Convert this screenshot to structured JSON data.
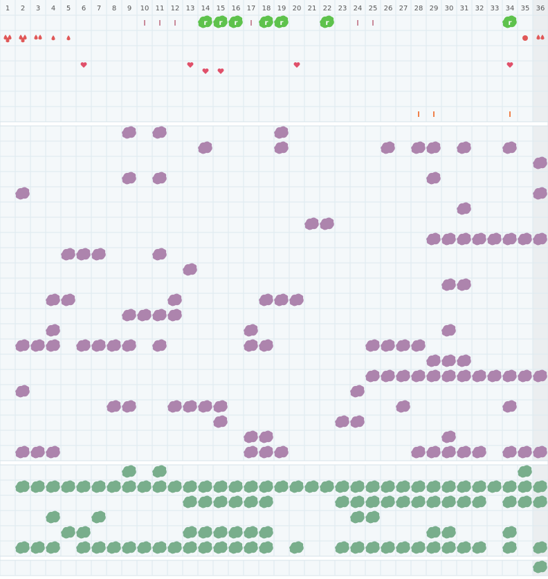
{
  "columns": [
    1,
    2,
    3,
    4,
    5,
    6,
    7,
    8,
    9,
    10,
    11,
    12,
    13,
    14,
    15,
    16,
    17,
    18,
    19,
    20,
    21,
    22,
    23,
    24,
    25,
    26,
    27,
    28,
    29,
    30,
    31,
    32,
    33,
    34,
    35,
    36
  ],
  "top": {
    "ticks": [
      10,
      11,
      12,
      17,
      24,
      25
    ],
    "flags": [
      14,
      15,
      16,
      18,
      19,
      22,
      34
    ],
    "drop_pairs": [
      1,
      2,
      3,
      36
    ],
    "drops": [
      4,
      5
    ],
    "dots": [
      35
    ],
    "hearts": [
      6,
      13,
      20,
      34
    ],
    "hearts_low": [
      14,
      15
    ],
    "small_ticks": [
      28,
      29,
      34
    ]
  },
  "purple_rows": [
    [
      9,
      11,
      19
    ],
    [
      14,
      19,
      26,
      28,
      29,
      31,
      34
    ],
    [
      36
    ],
    [
      9,
      11,
      29
    ],
    [
      2,
      36
    ],
    [
      31
    ],
    [
      21,
      22
    ],
    [
      29,
      30,
      31,
      32,
      33,
      34,
      35,
      36
    ],
    [
      5,
      6,
      7,
      11
    ],
    [
      13
    ],
    [
      30,
      31
    ],
    [
      4,
      5,
      12,
      18,
      19,
      20
    ],
    [
      9,
      10,
      11,
      12
    ],
    [
      4,
      17,
      30
    ],
    [
      2,
      3,
      4,
      6,
      7,
      8,
      9,
      11,
      17,
      18,
      25,
      26,
      27,
      28
    ],
    [
      29,
      30,
      31
    ],
    [
      25,
      26,
      27,
      28,
      29,
      30,
      31,
      32,
      33,
      34,
      35,
      36
    ],
    [
      2,
      24
    ],
    [
      8,
      9,
      12,
      13,
      14,
      15,
      27,
      34
    ],
    [
      15,
      23,
      24
    ],
    [
      17,
      18,
      30
    ],
    [
      2,
      3,
      4,
      17,
      18,
      19,
      28,
      29,
      30,
      31,
      32,
      34,
      35,
      36
    ]
  ],
  "green_rows": [
    [
      9,
      11,
      35
    ],
    [
      2,
      3,
      4,
      5,
      6,
      7,
      8,
      9,
      10,
      11,
      12,
      13,
      14,
      15,
      16,
      17,
      18,
      19,
      20,
      21,
      22,
      23,
      24,
      25,
      26,
      27,
      28,
      29,
      30,
      31,
      32,
      33,
      34,
      35,
      36
    ],
    [
      13,
      14,
      15,
      16,
      17,
      18,
      23,
      24,
      25,
      26,
      27,
      28,
      29,
      30,
      31,
      32,
      34,
      35,
      36
    ],
    [
      4,
      7,
      24,
      25
    ],
    [
      5,
      6,
      13,
      14,
      15,
      16,
      17,
      18,
      29,
      30,
      34
    ],
    [
      2,
      3,
      4,
      6,
      7,
      8,
      9,
      10,
      11,
      12,
      13,
      14,
      15,
      16,
      17,
      18,
      20,
      23,
      24,
      25,
      26,
      27,
      28,
      29,
      30,
      31,
      32,
      34,
      36
    ]
  ],
  "bottom_row": [
    36
  ]
}
